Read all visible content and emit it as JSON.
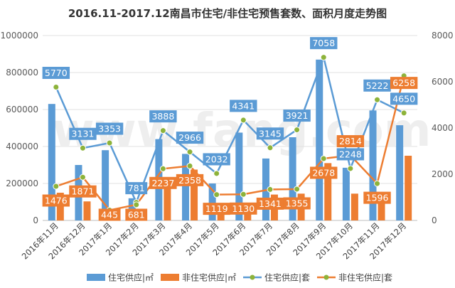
{
  "chart_data": {
    "type": "bar",
    "title": "2016.11-2017.12南昌市住宅/非住宅预售套数、面积月度走势图",
    "categories": [
      "2016年11月",
      "2016年12月",
      "2017年1月",
      "2017年2月",
      "2017年3月",
      "2017年4月",
      "2017年5月",
      "2017年6月",
      "2017年7月",
      "2017年8月",
      "2017年9月",
      "2017年10月",
      "2017年11月",
      "2017年12月"
    ],
    "y_left": {
      "ylim": [
        0,
        1000000
      ],
      "ticks": [
        "0",
        "200000",
        "400000",
        "600000",
        "800000",
        "1000000"
      ]
    },
    "y_right": {
      "ylim": [
        0,
        8000
      ],
      "ticks": [
        "0",
        "2000",
        "4000",
        "6000",
        "8000"
      ]
    },
    "series": [
      {
        "name": "住宅供应|㎡",
        "kind": "bar",
        "axis": "left",
        "color": "#5b9bd5",
        "values": [
          630000,
          300000,
          380000,
          120000,
          440000,
          360000,
          200000,
          475000,
          335000,
          450000,
          870000,
          285000,
          595000,
          515000
        ]
      },
      {
        "name": "非住宅供应|㎡",
        "kind": "bar",
        "axis": "left",
        "color": "#ed7d31",
        "values": [
          150000,
          103000,
          10000,
          55000,
          220000,
          275000,
          45000,
          50000,
          140000,
          145000,
          310000,
          145000,
          100000,
          350000
        ]
      },
      {
        "name": "住宅供应|套",
        "kind": "line",
        "axis": "right",
        "color": "#5b9bd5",
        "values": [
          5770,
          3131,
          3353,
          781,
          3888,
          2966,
          2032,
          4341,
          3145,
          3921,
          7058,
          2248,
          5222,
          4650
        ]
      },
      {
        "name": "非住宅供应|套",
        "kind": "line",
        "axis": "right",
        "color": "#ed7d31",
        "values": [
          1476,
          1871,
          445,
          681,
          2237,
          2358,
          1119,
          1130,
          1341,
          1355,
          2678,
          2814,
          1596,
          6258
        ]
      }
    ],
    "grid": true,
    "legend_position": "bottom",
    "watermark": "www.fang.com"
  }
}
